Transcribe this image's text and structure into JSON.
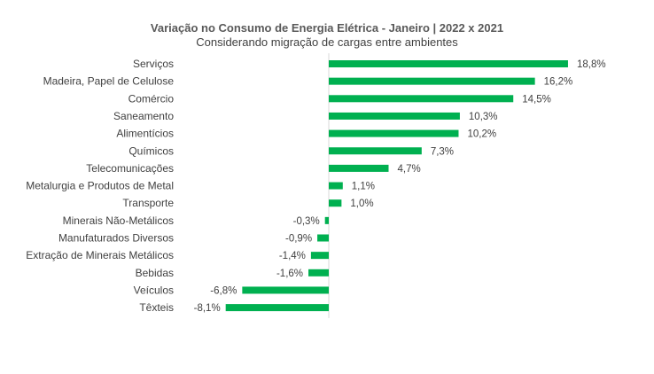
{
  "colors": {
    "bar": "#00b050",
    "axis": "#d9d9d9",
    "text": "#404040"
  },
  "chart_data": {
    "type": "bar",
    "orientation": "horizontal",
    "title": "Variação no Consumo de Energia Elétrica - Janeiro | 2022 x 2021",
    "subtitle": "Considerando migração de cargas entre ambientes",
    "categories": [
      "Serviços",
      "Madeira, Papel de Celulose",
      "Comércio",
      "Saneamento",
      "Alimentícios",
      "Químicos",
      "Telecomunicações",
      "Metalurgia e Produtos de Metal",
      "Transporte",
      "Minerais Não-Metálicos",
      "Manufaturados Diversos",
      "Extração de Minerais Metálicos",
      "Bebidas",
      "Veículos",
      "Têxteis"
    ],
    "values": [
      18.8,
      16.2,
      14.5,
      10.3,
      10.2,
      7.3,
      4.7,
      1.1,
      1.0,
      -0.3,
      -0.9,
      -1.4,
      -1.6,
      -6.8,
      -8.1
    ],
    "value_labels": [
      "18,8%",
      "16,2%",
      "14,5%",
      "10,3%",
      "10,2%",
      "7,3%",
      "4,7%",
      "1,1%",
      "1,0%",
      "-0,3%",
      "-0,9%",
      "-1,4%",
      "-1,6%",
      "-6,8%",
      "-8,1%"
    ],
    "xlim": [
      -8.1,
      18.8
    ],
    "grid": false,
    "legend": "none"
  }
}
